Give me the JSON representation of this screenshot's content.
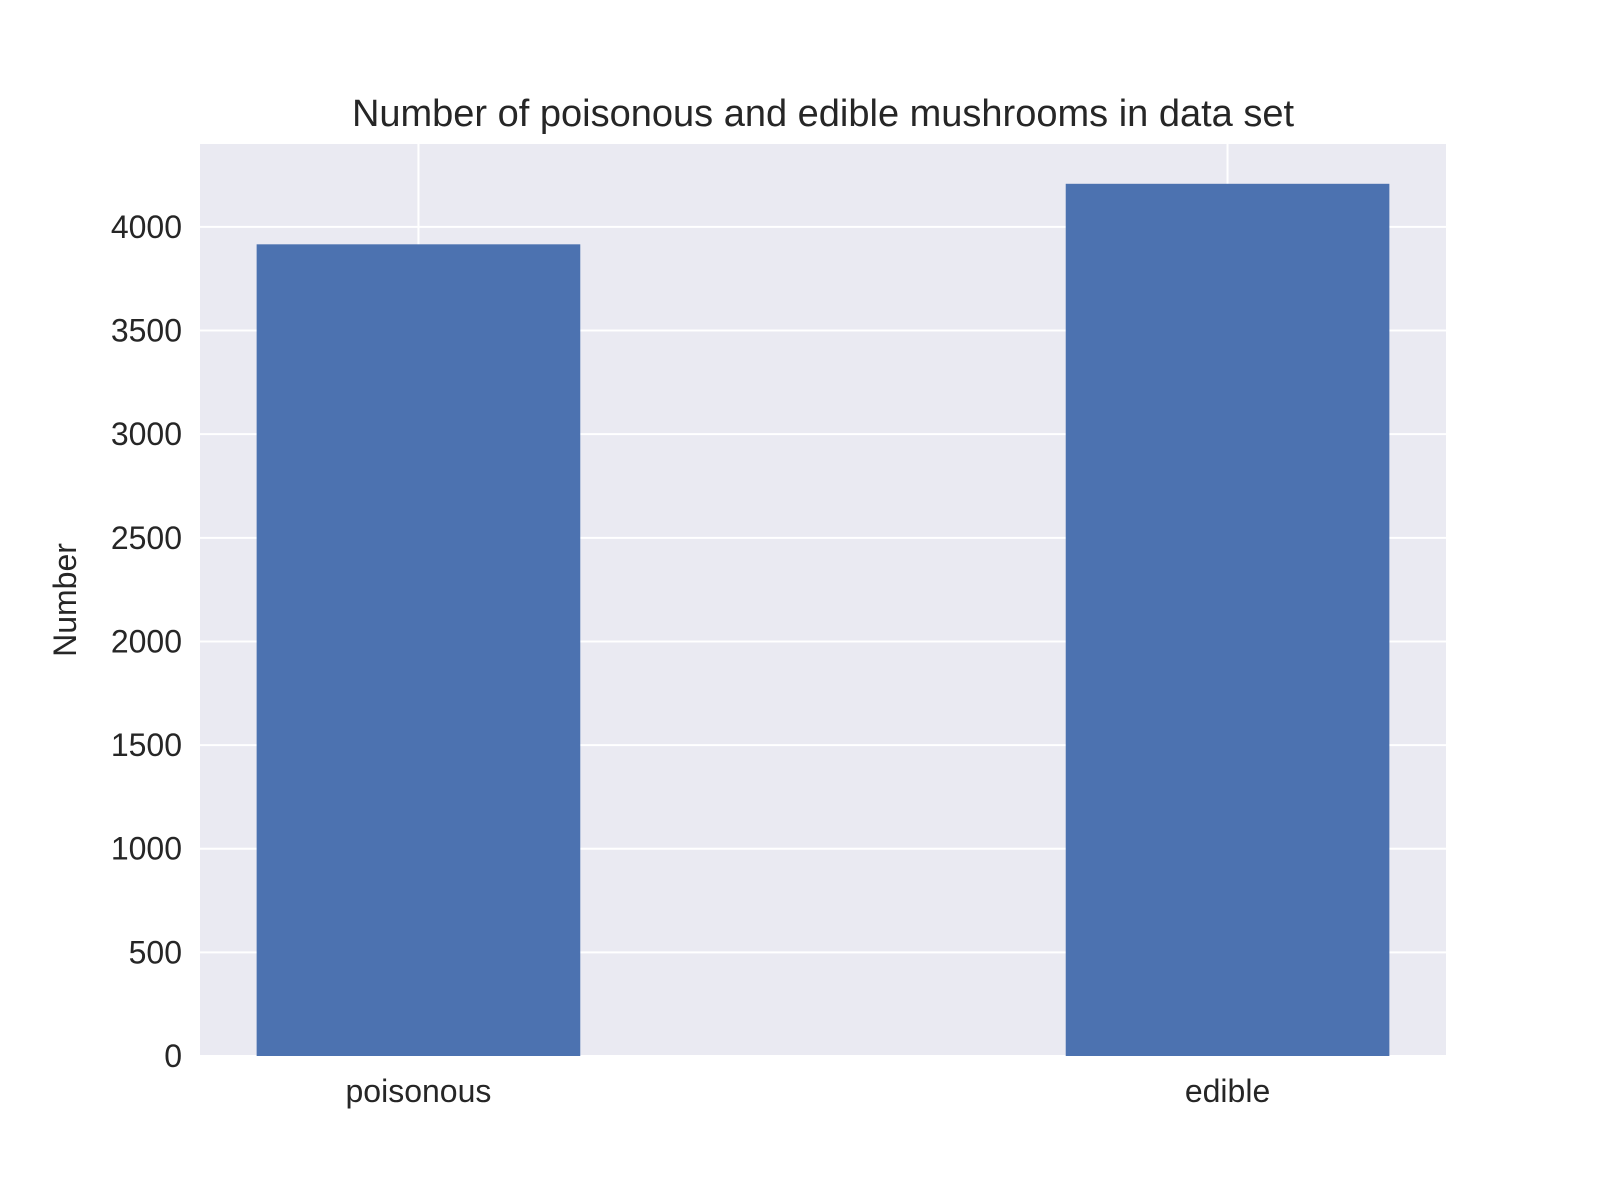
{
  "colors": {
    "plot_background": "#EAEAF2",
    "grid": "#FFFFFF",
    "bar": "#4C72B0",
    "text": "#262626"
  },
  "chart_data": {
    "type": "bar",
    "title": "Number of poisonous and edible mushrooms in data set",
    "xlabel": "",
    "ylabel": "Number",
    "categories": [
      "poisonous",
      "edible"
    ],
    "values": [
      3916,
      4208
    ],
    "ylim": [
      0,
      4400
    ],
    "yticks": [
      0,
      500,
      1000,
      1500,
      2000,
      2500,
      3000,
      3500,
      4000
    ],
    "grid": true,
    "legend": "none"
  }
}
